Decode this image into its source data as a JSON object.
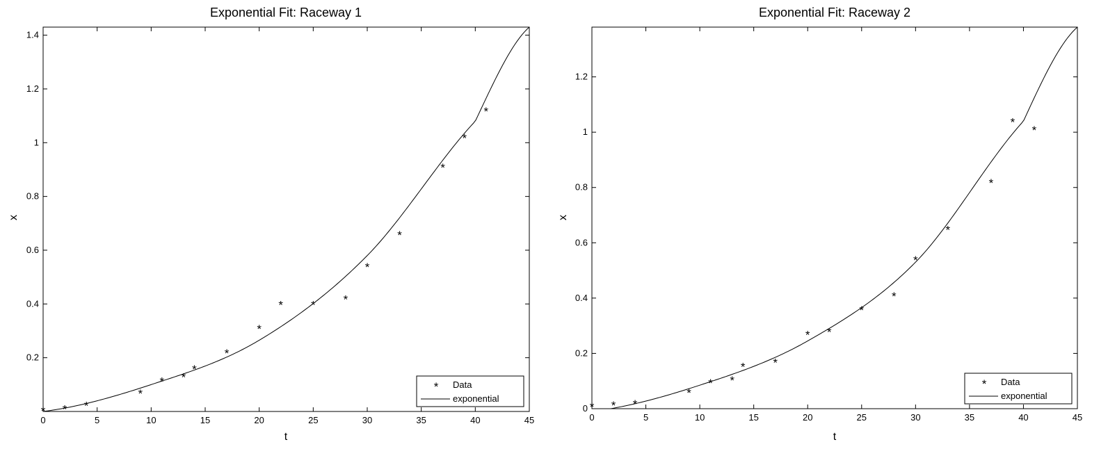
{
  "chart_data": [
    {
      "type": "scatter",
      "title": "Exponential Fit: Raceway 1",
      "xlabel": "t",
      "ylabel": "x",
      "xlim": [
        0,
        45
      ],
      "ylim": [
        0,
        1.43
      ],
      "xticks": [
        0,
        5,
        10,
        15,
        20,
        25,
        30,
        35,
        40,
        45
      ],
      "yticks": [
        0.2,
        0.4,
        0.6,
        0.8,
        1,
        1.2,
        1.4
      ],
      "grid": false,
      "legend": {
        "placement": "bottom-right",
        "entries": [
          "Data",
          "exponential"
        ]
      },
      "series": [
        {
          "name": "Data",
          "marker": "*",
          "x": [
            0,
            2,
            4,
            9,
            11,
            13,
            14,
            17,
            20,
            22,
            25,
            28,
            30,
            33,
            37,
            39,
            41
          ],
          "y": [
            0.005,
            0.012,
            0.025,
            0.07,
            0.115,
            0.13,
            0.16,
            0.22,
            0.31,
            0.4,
            0.4,
            0.42,
            0.54,
            0.66,
            0.91,
            1.02,
            1.12
          ]
        },
        {
          "name": "exponential",
          "x": [
            0,
            10,
            20,
            30,
            40,
            45
          ],
          "y": [
            0.0,
            0.1,
            0.265,
            0.58,
            1.08,
            1.43
          ]
        }
      ]
    },
    {
      "type": "scatter",
      "title": "Exponential Fit: Raceway 2",
      "xlabel": "t",
      "ylabel": "x",
      "xlim": [
        0,
        45
      ],
      "ylim": [
        0,
        1.38
      ],
      "xticks": [
        0,
        5,
        10,
        15,
        20,
        25,
        30,
        35,
        40,
        45
      ],
      "yticks": [
        0,
        0.2,
        0.4,
        0.6,
        0.8,
        1,
        1.2
      ],
      "grid": false,
      "legend": {
        "placement": "bottom-right",
        "entries": [
          "Data",
          "exponential"
        ]
      },
      "series": [
        {
          "name": "Data",
          "marker": "*",
          "x": [
            0,
            2,
            4,
            9,
            11,
            13,
            14,
            17,
            20,
            22,
            25,
            28,
            30,
            33,
            37,
            39,
            41
          ],
          "y": [
            0.01,
            0.015,
            0.02,
            0.06,
            0.095,
            0.105,
            0.155,
            0.17,
            0.27,
            0.28,
            0.36,
            0.41,
            0.54,
            0.65,
            0.82,
            1.04,
            1.01
          ]
        },
        {
          "name": "exponential",
          "x": [
            0,
            10,
            20,
            30,
            40,
            45
          ],
          "y": [
            -0.01,
            0.085,
            0.245,
            0.53,
            1.04,
            1.38
          ]
        }
      ]
    }
  ]
}
